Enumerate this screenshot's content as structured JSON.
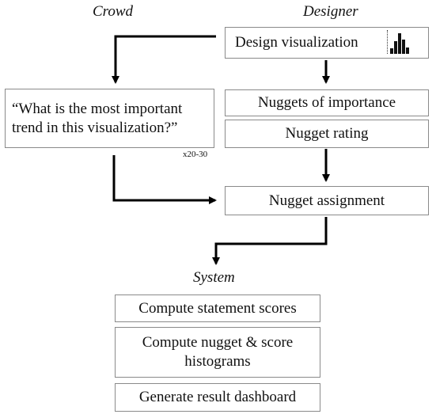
{
  "columns": {
    "crowd": "Crowd",
    "designer": "Designer",
    "system": "System"
  },
  "designer_steps": {
    "design": "Design visualization",
    "nuggets_importance": "Nuggets of importance",
    "nugget_rating": "Nugget rating",
    "nugget_assignment": "Nugget assignment"
  },
  "crowd_prompt": {
    "line1": "“What is the most important",
    "line2": "trend in this visualization?”",
    "multiplier": "x20-30"
  },
  "system_steps": {
    "statement_scores": "Compute statement scores",
    "histograms_line1": "Compute nugget & score",
    "histograms_line2": "histograms",
    "dashboard": "Generate result dashboard"
  },
  "mini_chart": {
    "icon": "bar-chart-icon",
    "bar_levels": [
      0.25,
      0.6,
      1.0,
      0.7,
      0.3
    ]
  }
}
